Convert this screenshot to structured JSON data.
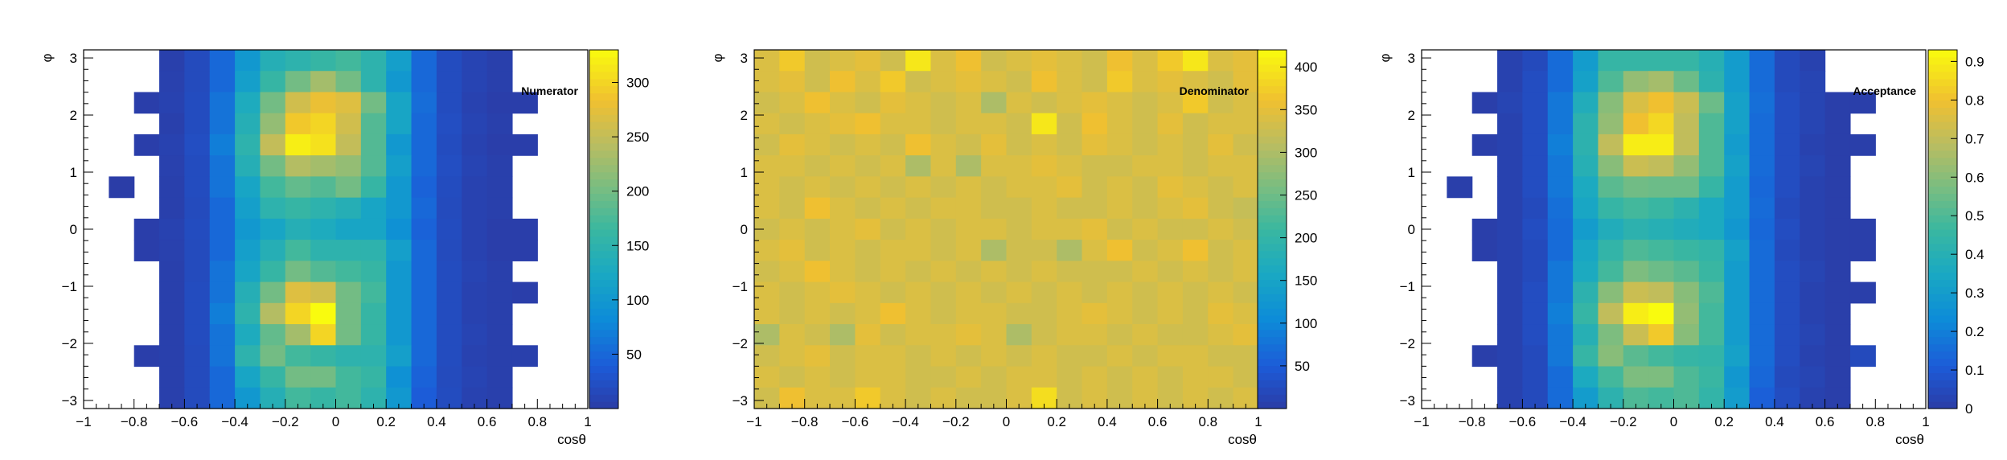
{
  "chart_data": [
    {
      "type": "heatmap",
      "title": "Numerator",
      "xlabel": "cosθ",
      "ylabel": "φ",
      "xlim": [
        -1,
        1
      ],
      "ylim": [
        -3.1416,
        3.1416
      ],
      "x_ticks": [
        "−1",
        "−0.8",
        "−0.6",
        "−0.4",
        "−0.2",
        "0",
        "0.2",
        "0.4",
        "0.6",
        "0.8",
        "1"
      ],
      "y_ticks": [
        "−3",
        "−2",
        "−1",
        "0",
        "1",
        "2",
        "3"
      ],
      "z_range": [
        0,
        330
      ],
      "z_ticks": [
        "50",
        "100",
        "150",
        "200",
        "250",
        "300"
      ],
      "grid": false,
      "z_values_rows_top_to_bottom": [
        [
          0,
          0,
          0,
          5,
          18,
          50,
          100,
          140,
          150,
          160,
          170,
          150,
          110,
          50,
          20,
          10,
          5,
          0,
          0,
          0
        ],
        [
          0,
          0,
          0,
          6,
          18,
          50,
          110,
          160,
          200,
          230,
          200,
          150,
          100,
          50,
          20,
          10,
          5,
          0,
          0,
          0
        ],
        [
          0,
          0,
          3,
          8,
          20,
          60,
          130,
          200,
          260,
          280,
          270,
          200,
          120,
          55,
          20,
          8,
          3,
          3,
          0,
          0
        ],
        [
          0,
          0,
          0,
          5,
          20,
          60,
          140,
          220,
          290,
          300,
          260,
          180,
          120,
          50,
          22,
          10,
          5,
          0,
          0,
          0
        ],
        [
          0,
          0,
          3,
          8,
          22,
          70,
          150,
          250,
          320,
          310,
          250,
          180,
          100,
          50,
          20,
          8,
          3,
          3,
          0,
          0
        ],
        [
          0,
          0,
          0,
          6,
          20,
          60,
          140,
          200,
          240,
          230,
          220,
          180,
          110,
          50,
          22,
          10,
          5,
          0,
          0,
          0
        ],
        [
          0,
          1,
          0,
          5,
          20,
          60,
          120,
          170,
          190,
          180,
          200,
          160,
          100,
          45,
          20,
          8,
          5,
          0,
          0,
          0
        ],
        [
          0,
          0,
          0,
          5,
          18,
          50,
          110,
          150,
          160,
          150,
          140,
          120,
          100,
          50,
          18,
          8,
          5,
          0,
          0,
          0
        ],
        [
          0,
          0,
          3,
          8,
          20,
          50,
          100,
          120,
          140,
          130,
          120,
          120,
          90,
          45,
          20,
          8,
          3,
          3,
          0,
          0
        ],
        [
          0,
          0,
          3,
          6,
          18,
          50,
          110,
          140,
          170,
          150,
          150,
          150,
          110,
          50,
          18,
          8,
          3,
          3,
          0,
          0
        ],
        [
          0,
          0,
          0,
          5,
          18,
          60,
          120,
          160,
          200,
          180,
          170,
          160,
          100,
          50,
          20,
          10,
          5,
          0,
          0,
          0
        ],
        [
          0,
          0,
          0,
          5,
          20,
          60,
          140,
          200,
          270,
          260,
          200,
          170,
          100,
          50,
          20,
          8,
          5,
          3,
          0,
          0
        ],
        [
          0,
          0,
          0,
          5,
          20,
          70,
          150,
          240,
          300,
          330,
          200,
          160,
          100,
          50,
          20,
          8,
          5,
          0,
          0,
          0
        ],
        [
          0,
          0,
          0,
          5,
          20,
          60,
          130,
          190,
          230,
          300,
          200,
          160,
          100,
          50,
          20,
          10,
          5,
          0,
          0,
          0
        ],
        [
          0,
          0,
          3,
          5,
          18,
          60,
          150,
          200,
          170,
          160,
          150,
          150,
          110,
          50,
          20,
          8,
          5,
          5,
          0,
          0
        ],
        [
          0,
          0,
          0,
          5,
          18,
          50,
          120,
          160,
          200,
          200,
          170,
          160,
          90,
          45,
          18,
          10,
          5,
          0,
          0,
          0
        ],
        [
          0,
          0,
          0,
          5,
          18,
          50,
          100,
          140,
          170,
          160,
          170,
          150,
          100,
          40,
          20,
          8,
          5,
          0,
          0,
          0
        ]
      ]
    },
    {
      "type": "heatmap",
      "title": "Denominator",
      "xlabel": "cosθ",
      "ylabel": "φ",
      "xlim": [
        -1,
        1
      ],
      "ylim": [
        -3.1416,
        3.1416
      ],
      "x_ticks": [
        "−1",
        "−0.8",
        "−0.6",
        "−0.4",
        "−0.2",
        "0",
        "0.2",
        "0.4",
        "0.6",
        "0.8",
        "1"
      ],
      "y_ticks": [
        "−3",
        "−2",
        "−1",
        "0",
        "1",
        "2",
        "3"
      ],
      "z_range": [
        0,
        420
      ],
      "z_ticks": [
        "50",
        "100",
        "150",
        "200",
        "250",
        "300",
        "350",
        "400"
      ],
      "grid": false,
      "z_values_rows_top_to_bottom": [
        [
          340,
          370,
          330,
          340,
          350,
          330,
          400,
          340,
          360,
          330,
          340,
          350,
          340,
          330,
          360,
          340,
          370,
          400,
          340,
          350
        ],
        [
          340,
          350,
          330,
          360,
          340,
          370,
          330,
          340,
          350,
          340,
          330,
          360,
          340,
          330,
          370,
          340,
          350,
          340,
          330,
          350
        ],
        [
          330,
          340,
          360,
          340,
          330,
          350,
          340,
          330,
          340,
          300,
          340,
          330,
          340,
          350,
          340,
          330,
          340,
          370,
          330,
          340
        ],
        [
          340,
          330,
          340,
          350,
          360,
          340,
          340,
          330,
          340,
          340,
          330,
          400,
          330,
          360,
          340,
          330,
          350,
          330,
          340,
          340
        ],
        [
          330,
          350,
          340,
          330,
          340,
          330,
          360,
          340,
          330,
          350,
          330,
          340,
          330,
          350,
          340,
          330,
          340,
          330,
          350,
          330
        ],
        [
          340,
          340,
          330,
          340,
          330,
          340,
          300,
          340,
          300,
          340,
          340,
          350,
          340,
          330,
          330,
          340,
          340,
          330,
          340,
          340
        ],
        [
          340,
          330,
          340,
          330,
          340,
          330,
          340,
          330,
          340,
          330,
          340,
          340,
          350,
          330,
          340,
          330,
          350,
          340,
          330,
          340
        ],
        [
          340,
          330,
          360,
          340,
          330,
          340,
          330,
          340,
          340,
          330,
          330,
          340,
          330,
          330,
          340,
          330,
          340,
          350,
          330,
          320
        ],
        [
          330,
          340,
          330,
          340,
          350,
          330,
          340,
          330,
          340,
          340,
          330,
          340,
          340,
          350,
          330,
          340,
          330,
          330,
          340,
          330
        ],
        [
          340,
          350,
          330,
          340,
          330,
          340,
          340,
          330,
          340,
          300,
          330,
          330,
          300,
          340,
          360,
          330,
          340,
          360,
          330,
          340
        ],
        [
          330,
          340,
          360,
          340,
          330,
          340,
          330,
          340,
          330,
          340,
          330,
          340,
          330,
          330,
          330,
          340,
          330,
          340,
          330,
          340
        ],
        [
          340,
          330,
          340,
          350,
          340,
          330,
          340,
          330,
          340,
          330,
          340,
          330,
          340,
          330,
          340,
          330,
          340,
          330,
          340,
          330
        ],
        [
          340,
          330,
          340,
          330,
          340,
          360,
          340,
          330,
          340,
          340,
          330,
          330,
          340,
          350,
          340,
          330,
          340,
          330,
          350,
          340
        ],
        [
          300,
          340,
          330,
          300,
          350,
          330,
          340,
          340,
          350,
          340,
          300,
          330,
          340,
          340,
          330,
          340,
          330,
          330,
          340,
          350
        ],
        [
          330,
          340,
          350,
          330,
          340,
          340,
          330,
          340,
          330,
          340,
          330,
          340,
          330,
          330,
          340,
          330,
          340,
          340,
          330,
          330
        ],
        [
          340,
          330,
          340,
          330,
          340,
          340,
          330,
          330,
          340,
          330,
          340,
          340,
          330,
          340,
          330,
          340,
          330,
          340,
          340,
          330
        ],
        [
          330,
          360,
          340,
          340,
          370,
          340,
          330,
          340,
          330,
          330,
          340,
          390,
          330,
          340,
          330,
          340,
          330,
          340,
          330,
          340
        ]
      ]
    },
    {
      "type": "heatmap",
      "title": "Acceptance",
      "xlabel": "cosθ",
      "ylabel": "φ",
      "xlim": [
        -1,
        1
      ],
      "ylim": [
        -3.1416,
        3.1416
      ],
      "x_ticks": [
        "−1",
        "−0.8",
        "−0.6",
        "−0.4",
        "−0.2",
        "0",
        "0.2",
        "0.4",
        "0.6",
        "0.8",
        "1"
      ],
      "y_ticks": [
        "−3",
        "−2",
        "−1",
        "0",
        "1",
        "2",
        "3"
      ],
      "z_range": [
        0,
        0.93
      ],
      "z_ticks": [
        "0",
        "0.1",
        "0.2",
        "0.3",
        "0.4",
        "0.5",
        "0.6",
        "0.7",
        "0.8",
        "0.9"
      ],
      "grid": false,
      "z_values_rows_top_to_bottom": [
        [
          0,
          0,
          0,
          0.02,
          0.05,
          0.15,
          0.3,
          0.45,
          0.45,
          0.45,
          0.45,
          0.4,
          0.3,
          0.15,
          0.05,
          0.02,
          0,
          0,
          0,
          0
        ],
        [
          0,
          0,
          0,
          0.02,
          0.06,
          0.15,
          0.32,
          0.5,
          0.62,
          0.65,
          0.55,
          0.42,
          0.3,
          0.15,
          0.05,
          0.03,
          0,
          0,
          0,
          0
        ],
        [
          0,
          0,
          0.01,
          0.03,
          0.06,
          0.18,
          0.38,
          0.6,
          0.75,
          0.8,
          0.72,
          0.55,
          0.32,
          0.16,
          0.06,
          0.03,
          0.01,
          0.01,
          0,
          0
        ],
        [
          0,
          0,
          0,
          0.02,
          0.06,
          0.18,
          0.42,
          0.62,
          0.8,
          0.85,
          0.7,
          0.5,
          0.32,
          0.15,
          0.06,
          0.03,
          0.01,
          0,
          0,
          0
        ],
        [
          0,
          0,
          0.01,
          0.02,
          0.06,
          0.2,
          0.42,
          0.7,
          0.9,
          0.9,
          0.7,
          0.5,
          0.3,
          0.15,
          0.06,
          0.02,
          0.01,
          0.01,
          0,
          0
        ],
        [
          0,
          0,
          0,
          0.02,
          0.06,
          0.18,
          0.4,
          0.6,
          0.72,
          0.7,
          0.62,
          0.5,
          0.32,
          0.15,
          0.06,
          0.03,
          0.01,
          0,
          0,
          0
        ],
        [
          0,
          0.01,
          0,
          0.02,
          0.06,
          0.18,
          0.36,
          0.52,
          0.56,
          0.55,
          0.55,
          0.45,
          0.3,
          0.14,
          0.06,
          0.02,
          0.01,
          0,
          0,
          0
        ],
        [
          0,
          0,
          0,
          0.02,
          0.05,
          0.16,
          0.34,
          0.45,
          0.48,
          0.46,
          0.42,
          0.36,
          0.3,
          0.15,
          0.05,
          0.02,
          0.01,
          0,
          0,
          0
        ],
        [
          0,
          0,
          0.01,
          0.02,
          0.06,
          0.15,
          0.3,
          0.38,
          0.42,
          0.4,
          0.38,
          0.36,
          0.28,
          0.14,
          0.06,
          0.02,
          0.01,
          0.01,
          0,
          0
        ],
        [
          0,
          0,
          0.01,
          0.02,
          0.05,
          0.15,
          0.34,
          0.44,
          0.5,
          0.48,
          0.46,
          0.44,
          0.32,
          0.15,
          0.05,
          0.02,
          0.01,
          0.01,
          0,
          0
        ],
        [
          0,
          0,
          0,
          0.02,
          0.05,
          0.18,
          0.36,
          0.48,
          0.58,
          0.55,
          0.52,
          0.46,
          0.3,
          0.15,
          0.06,
          0.03,
          0.01,
          0,
          0,
          0
        ],
        [
          0,
          0,
          0,
          0.02,
          0.06,
          0.18,
          0.42,
          0.6,
          0.72,
          0.7,
          0.6,
          0.5,
          0.3,
          0.15,
          0.06,
          0.02,
          0.01,
          0.01,
          0,
          0
        ],
        [
          0,
          0,
          0,
          0.02,
          0.06,
          0.2,
          0.45,
          0.7,
          0.9,
          0.93,
          0.62,
          0.48,
          0.3,
          0.15,
          0.06,
          0.02,
          0.01,
          0,
          0,
          0
        ],
        [
          0,
          0,
          0,
          0.02,
          0.06,
          0.18,
          0.4,
          0.58,
          0.72,
          0.82,
          0.6,
          0.48,
          0.3,
          0.15,
          0.06,
          0.03,
          0.01,
          0,
          0,
          0
        ],
        [
          0,
          0,
          0.01,
          0.02,
          0.05,
          0.18,
          0.45,
          0.6,
          0.52,
          0.48,
          0.45,
          0.44,
          0.32,
          0.15,
          0.06,
          0.02,
          0.01,
          0.05,
          0,
          0
        ],
        [
          0,
          0,
          0,
          0.02,
          0.05,
          0.15,
          0.36,
          0.48,
          0.58,
          0.58,
          0.5,
          0.46,
          0.28,
          0.14,
          0.05,
          0.03,
          0.01,
          0,
          0,
          0
        ],
        [
          0,
          0,
          0,
          0.02,
          0.05,
          0.15,
          0.3,
          0.42,
          0.5,
          0.48,
          0.5,
          0.44,
          0.3,
          0.12,
          0.06,
          0.02,
          0.01,
          0,
          0,
          0
        ]
      ]
    }
  ]
}
